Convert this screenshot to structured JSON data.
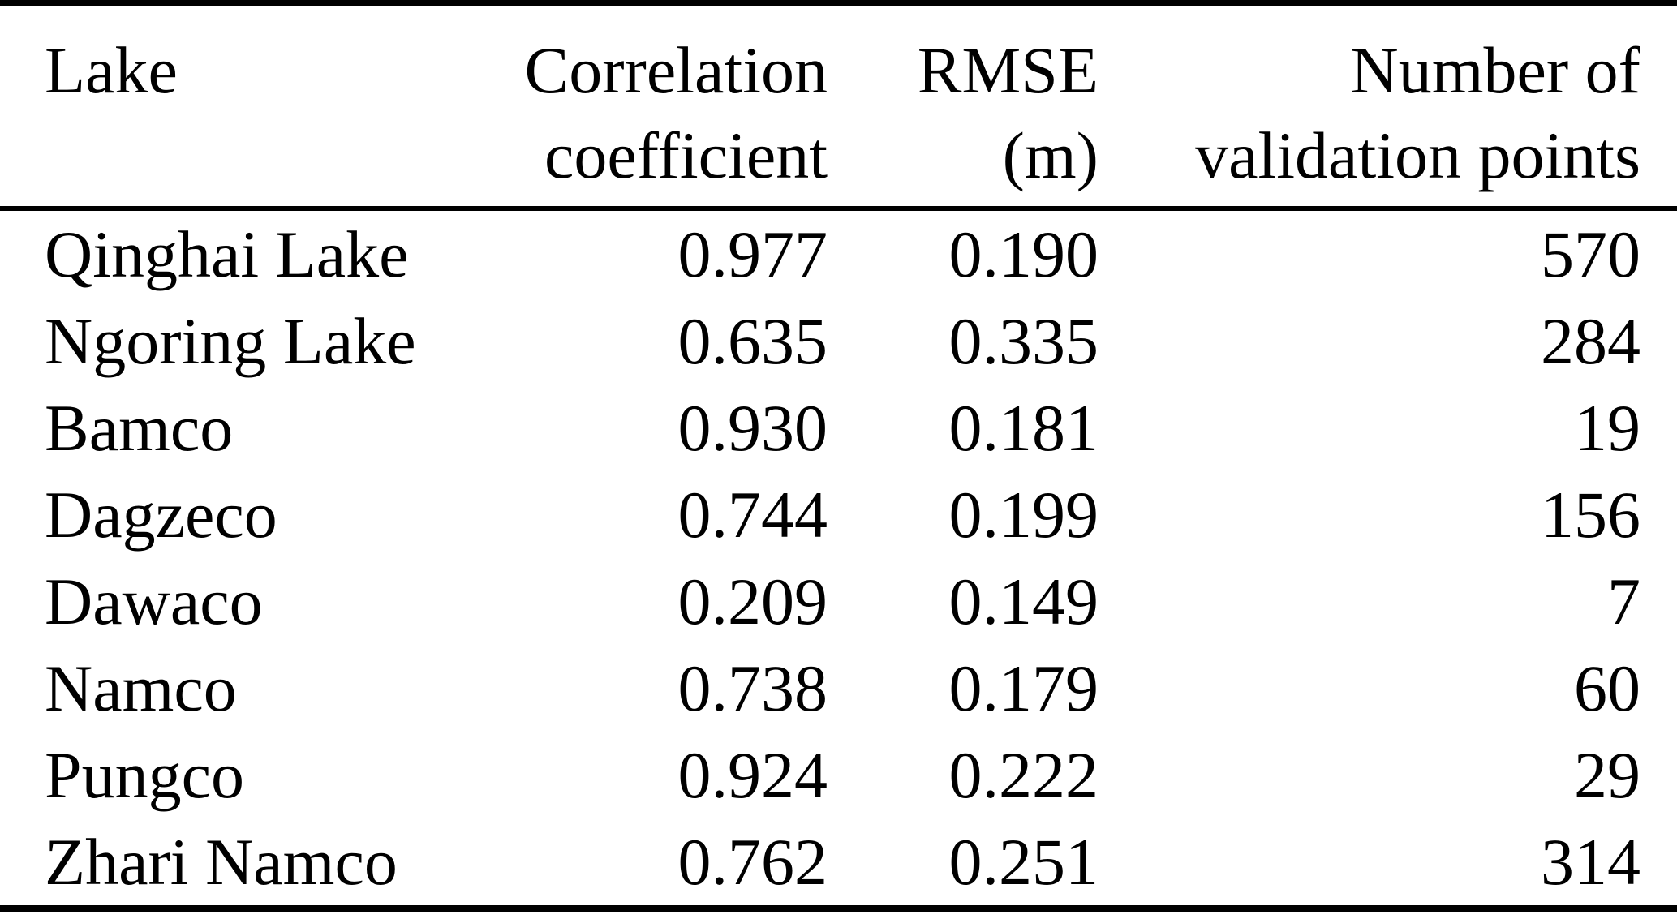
{
  "table": {
    "columns": [
      {
        "line1": "Lake",
        "line2": ""
      },
      {
        "line1": "Correlation",
        "line2": "coefficient"
      },
      {
        "line1": "RMSE",
        "line2": "(m)"
      },
      {
        "line1": "Number of",
        "line2": "validation points"
      }
    ],
    "rows": [
      {
        "lake": "Qinghai Lake",
        "correlation": "0.977",
        "rmse": "0.190",
        "points": "570"
      },
      {
        "lake": "Ngoring Lake",
        "correlation": "0.635",
        "rmse": "0.335",
        "points": "284"
      },
      {
        "lake": "Bamco",
        "correlation": "0.930",
        "rmse": "0.181",
        "points": "19"
      },
      {
        "lake": "Dagzeco",
        "correlation": "0.744",
        "rmse": "0.199",
        "points": "156"
      },
      {
        "lake": "Dawaco",
        "correlation": "0.209",
        "rmse": "0.149",
        "points": "7"
      },
      {
        "lake": "Namco",
        "correlation": "0.738",
        "rmse": "0.179",
        "points": "60"
      },
      {
        "lake": "Pungco",
        "correlation": "0.924",
        "rmse": "0.222",
        "points": "29"
      },
      {
        "lake": "Zhari Namco",
        "correlation": "0.762",
        "rmse": "0.251",
        "points": "314"
      }
    ]
  },
  "colors": {
    "text": "#000000",
    "background": "#ffffff",
    "rule": "#000000"
  }
}
